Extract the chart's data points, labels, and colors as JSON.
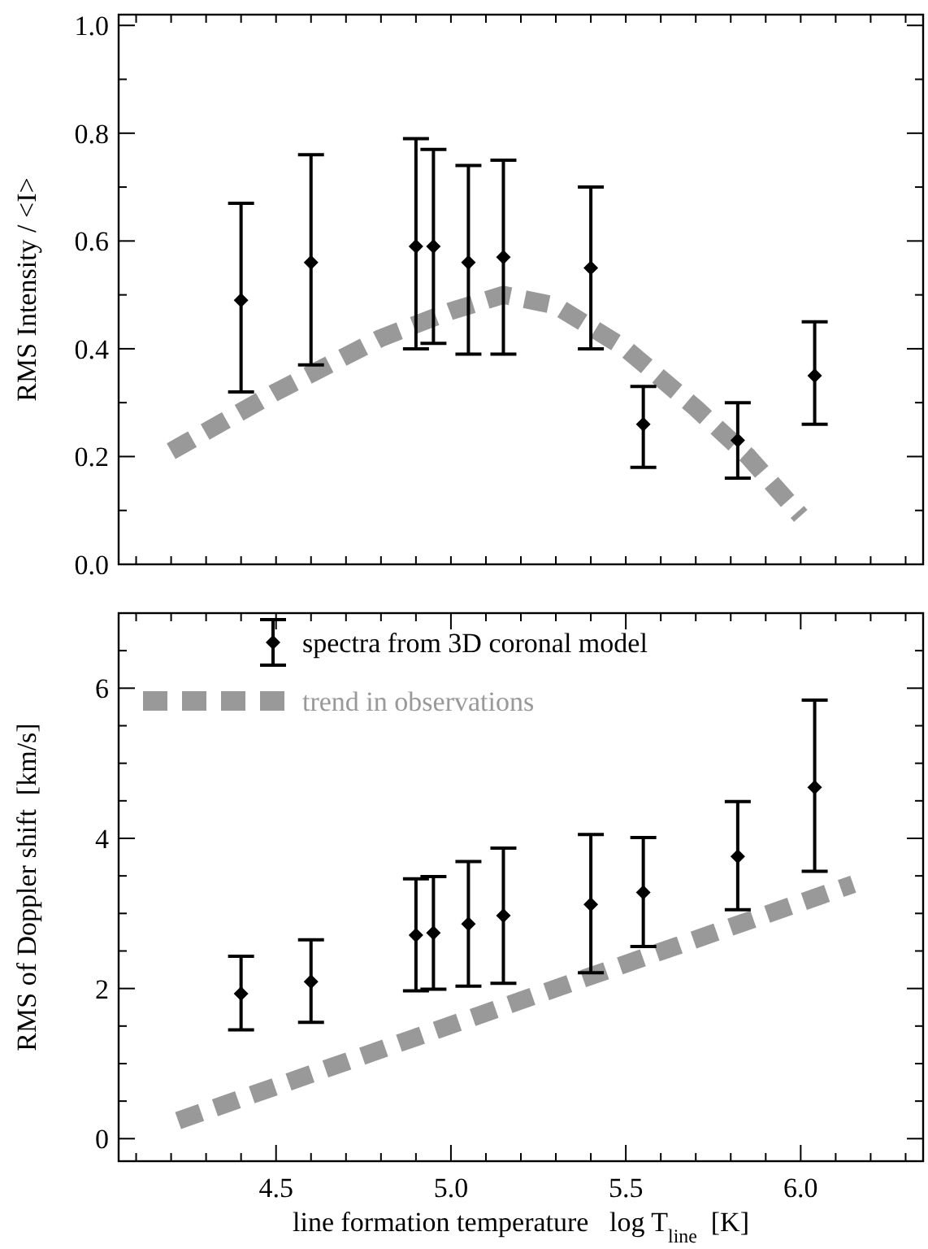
{
  "chart_data": [
    {
      "type": "scatter",
      "ylabel": "RMS Intensity / <I>",
      "xlim": [
        4.05,
        6.35
      ],
      "ylim": [
        0,
        1.02
      ],
      "tick_labels": "y",
      "line_style": "dashed",
      "xticks": [
        {
          "value": 4.1,
          "label": null
        },
        {
          "value": 4.2,
          "label": null
        },
        {
          "value": 4.3,
          "label": null
        },
        {
          "value": 4.4,
          "label": null
        },
        {
          "value": 4.5,
          "label": null
        },
        {
          "value": 4.6,
          "label": null
        },
        {
          "value": 4.7,
          "label": null
        },
        {
          "value": 4.8,
          "label": null
        },
        {
          "value": 4.9,
          "label": null
        },
        {
          "value": 5.0,
          "label": null
        },
        {
          "value": 5.1,
          "label": null
        },
        {
          "value": 5.2,
          "label": null
        },
        {
          "value": 5.3,
          "label": null
        },
        {
          "value": 5.4,
          "label": null
        },
        {
          "value": 5.5,
          "label": null
        },
        {
          "value": 5.6,
          "label": null
        },
        {
          "value": 5.7,
          "label": null
        },
        {
          "value": 5.8,
          "label": null
        },
        {
          "value": 5.9,
          "label": null
        },
        {
          "value": 6.0,
          "label": null
        },
        {
          "value": 6.1,
          "label": null
        },
        {
          "value": 6.2,
          "label": null
        },
        {
          "value": 6.3,
          "label": null
        }
      ],
      "yticks": [
        {
          "value": 0,
          "label": "0.0"
        },
        {
          "value": 0.1,
          "label": null
        },
        {
          "value": 0.2,
          "label": "0.2"
        },
        {
          "value": 0.3,
          "label": null
        },
        {
          "value": 0.4,
          "label": "0.4"
        },
        {
          "value": 0.5,
          "label": null
        },
        {
          "value": 0.6,
          "label": "0.6"
        },
        {
          "value": 0.7,
          "label": null
        },
        {
          "value": 0.8,
          "label": "0.8"
        },
        {
          "value": 0.9,
          "label": null
        },
        {
          "value": 1.0,
          "label": "1.0"
        }
      ],
      "series": [
        {
          "type": "scatter",
          "marker": "diamond",
          "color": "#000000",
          "x": [
            4.4,
            4.6,
            4.9,
            4.95,
            5.05,
            5.15,
            5.4,
            5.55,
            5.82,
            6.04
          ],
          "values": [
            0.49,
            0.56,
            0.59,
            0.59,
            0.56,
            0.57,
            0.55,
            0.26,
            0.23,
            0.35
          ],
          "errors": [
            [
              0.32,
              0.67
            ],
            [
              0.37,
              0.76
            ],
            [
              0.4,
              0.79
            ],
            [
              0.41,
              0.77
            ],
            [
              0.39,
              0.74
            ],
            [
              0.39,
              0.75
            ],
            [
              0.4,
              0.7
            ],
            [
              0.18,
              0.33
            ],
            [
              0.16,
              0.3
            ],
            [
              0.26,
              0.45
            ]
          ]
        },
        {
          "type": "line",
          "marker": "none",
          "color": "#999999",
          "x": [
            4.2,
            4.5,
            4.8,
            5.0,
            5.15,
            5.3,
            5.5,
            5.7,
            5.85,
            6.0
          ],
          "values": [
            0.21,
            0.32,
            0.42,
            0.47,
            0.5,
            0.48,
            0.4,
            0.29,
            0.2,
            0.09
          ]
        }
      ]
    },
    {
      "type": "scatter",
      "xlabel": "line formation temperature   log T$_{line}$  [K]",
      "ylabel": "RMS of Doppler shift  [km/s]",
      "xlim": [
        4.05,
        6.35
      ],
      "ylim": [
        -0.3,
        7
      ],
      "line_style": "dashed",
      "legend": "top left",
      "xticks": [
        {
          "value": 4.1,
          "label": null
        },
        {
          "value": 4.2,
          "label": null
        },
        {
          "value": 4.3,
          "label": null
        },
        {
          "value": 4.4,
          "label": null
        },
        4.5,
        {
          "value": 4.6,
          "label": null
        },
        {
          "value": 4.7,
          "label": null
        },
        {
          "value": 4.8,
          "label": null
        },
        {
          "value": 4.9,
          "label": null
        },
        {
          "value": 5.0,
          "label": "5.0"
        },
        {
          "value": 5.1,
          "label": null
        },
        {
          "value": 5.2,
          "label": null
        },
        {
          "value": 5.3,
          "label": null
        },
        {
          "value": 5.4,
          "label": null
        },
        5.5,
        {
          "value": 5.6,
          "label": null
        },
        {
          "value": 5.7,
          "label": null
        },
        {
          "value": 5.8,
          "label": null
        },
        {
          "value": 5.9,
          "label": null
        },
        {
          "value": 6.0,
          "label": "6.0"
        },
        {
          "value": 6.1,
          "label": null
        },
        {
          "value": 6.2,
          "label": null
        },
        {
          "value": 6.3,
          "label": null
        }
      ],
      "yticks": [
        0,
        {
          "value": 0.5,
          "label": null
        },
        {
          "value": 1,
          "label": null
        },
        {
          "value": 1.5,
          "label": null
        },
        2,
        {
          "value": 2.5,
          "label": null
        },
        {
          "value": 3,
          "label": null
        },
        {
          "value": 3.5,
          "label": null
        },
        4,
        {
          "value": 4.5,
          "label": null
        },
        {
          "value": 5,
          "label": null
        },
        {
          "value": 5.5,
          "label": null
        },
        6,
        {
          "value": 6.5,
          "label": null
        }
      ],
      "series": [
        {
          "type": "scatter",
          "marker": "diamond",
          "name": "spectra from 3D coronal model",
          "color": "#000000",
          "x": [
            4.4,
            4.6,
            4.9,
            4.95,
            5.05,
            5.15,
            5.4,
            5.55,
            5.82,
            6.04
          ],
          "values": [
            1.93,
            2.09,
            2.71,
            2.74,
            2.86,
            2.97,
            3.12,
            3.28,
            3.76,
            4.68
          ],
          "errors": [
            [
              1.45,
              2.43
            ],
            [
              1.55,
              2.65
            ],
            [
              1.97,
              3.46
            ],
            [
              1.99,
              3.49
            ],
            [
              2.03,
              3.69
            ],
            [
              2.07,
              3.87
            ],
            [
              2.21,
              4.05
            ],
            [
              2.56,
              4.01
            ],
            [
              3.05,
              4.49
            ],
            [
              3.56,
              5.84
            ]
          ]
        },
        {
          "type": "line",
          "marker": "none",
          "name": "trend in observations",
          "color": "#999999",
          "x": [
            4.22,
            6.15
          ],
          "values": [
            0.24,
            3.39
          ]
        }
      ]
    }
  ]
}
